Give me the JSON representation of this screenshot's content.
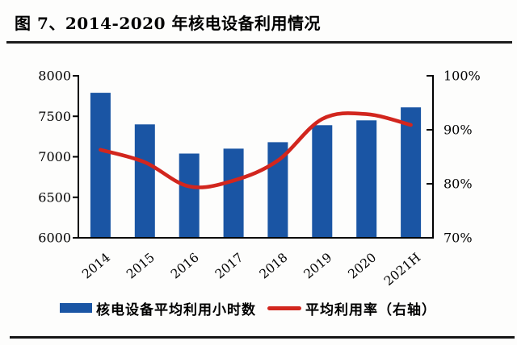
{
  "title": "图 7、2014-2020 年核电设备利用情况",
  "legend": {
    "bars_label": "核电设备平均利用小时数",
    "line_label": "平均利用率（右轴）"
  },
  "colors": {
    "bar": "#1a55a4",
    "line": "#d2261e",
    "axis": "#000000"
  },
  "chart_data": {
    "type": "bar",
    "title": "图 7、2014-2020 年核电设备利用情况",
    "categories": [
      "2014",
      "2015",
      "2016",
      "2017",
      "2018",
      "2019",
      "2020",
      "2021H"
    ],
    "series": [
      {
        "name": "核电设备平均利用小时数",
        "type": "bar",
        "axis": "left",
        "values": [
          7790,
          7400,
          7040,
          7100,
          7180,
          7390,
          7450,
          7610
        ]
      },
      {
        "name": "平均利用率（右轴）",
        "type": "line",
        "axis": "right",
        "values": [
          86.3,
          84.0,
          79.5,
          80.6,
          84.3,
          92.0,
          92.9,
          90.9
        ]
      }
    ],
    "xlabel": "",
    "ylabel": "",
    "left_axis": {
      "min": 6000,
      "max": 8000,
      "tick_labels": [
        "8000",
        "7500",
        "7000",
        "6500",
        "6000"
      ]
    },
    "right_axis": {
      "min": 70,
      "max": 100,
      "tick_labels": [
        "100%",
        "90%",
        "80%",
        "70%"
      ]
    },
    "grid": false,
    "legend_position": "bottom"
  }
}
